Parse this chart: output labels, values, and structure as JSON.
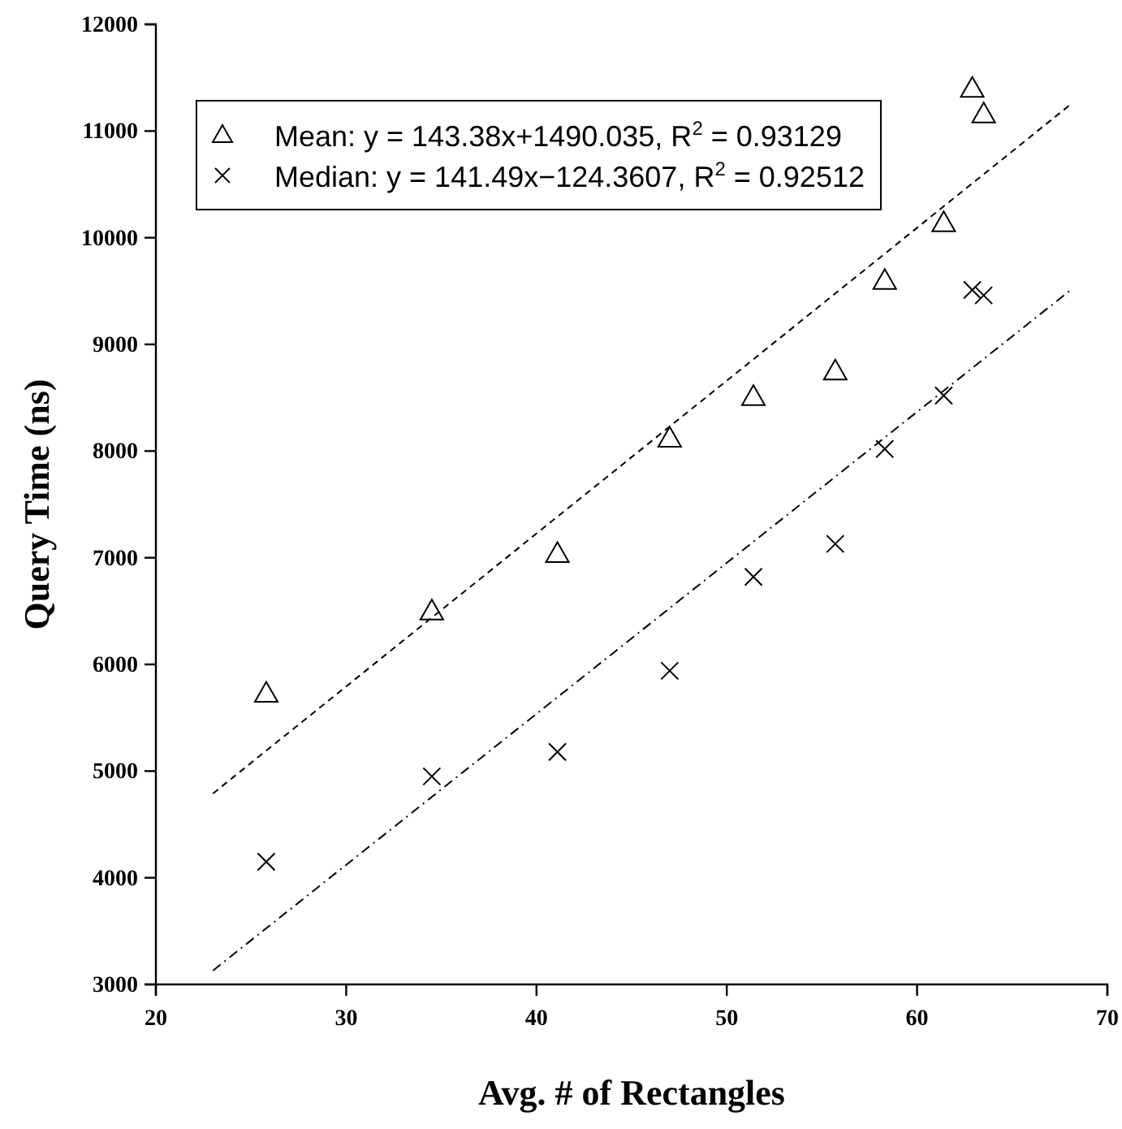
{
  "chart_data": {
    "type": "scatter",
    "xlabel": "Avg. # of Rectangles",
    "ylabel": "Query Time (ns)",
    "xlim": [
      20,
      70
    ],
    "xticks": [
      20,
      30,
      40,
      50,
      60,
      70
    ],
    "ylim": [
      3000,
      12000
    ],
    "yticks": [
      3000,
      4000,
      5000,
      6000,
      7000,
      8000,
      9000,
      10000,
      11000,
      12000
    ],
    "grid": false,
    "legend": "top left",
    "series": [
      {
        "name": "Mean:  y = 143.38x+1490.035, R$^{2}$ = 0.93129",
        "marker": "triangle",
        "color": "#000000",
        "x": [
          25.8,
          34.5,
          41.1,
          47.0,
          51.4,
          55.7,
          58.3,
          61.4,
          62.9,
          63.5
        ],
        "values": [
          5730,
          6500,
          7040,
          8120,
          8510,
          8750,
          9600,
          10140,
          11400,
          11160
        ]
      },
      {
        "name": "Median:  y = 141.49x−124.3607, R$^{2}$ = 0.92512",
        "marker": "cross",
        "color": "#000000",
        "x": [
          25.8,
          34.5,
          41.1,
          47.0,
          51.4,
          55.7,
          58.3,
          61.4,
          62.9,
          63.5
        ],
        "values": [
          4150,
          4950,
          5180,
          5940,
          6820,
          7130,
          8020,
          8520,
          9510,
          9460
        ]
      },
      {
        "type": "line",
        "line_style": "dashed",
        "marker": "none",
        "color": "#000000",
        "x": [
          23,
          68
        ],
        "values": [
          4790,
          11240
        ]
      },
      {
        "type": "line",
        "line_style": "dotted",
        "marker": "none",
        "color": "#000000",
        "x": [
          23,
          68
        ],
        "values": [
          3130,
          9500
        ]
      }
    ]
  }
}
